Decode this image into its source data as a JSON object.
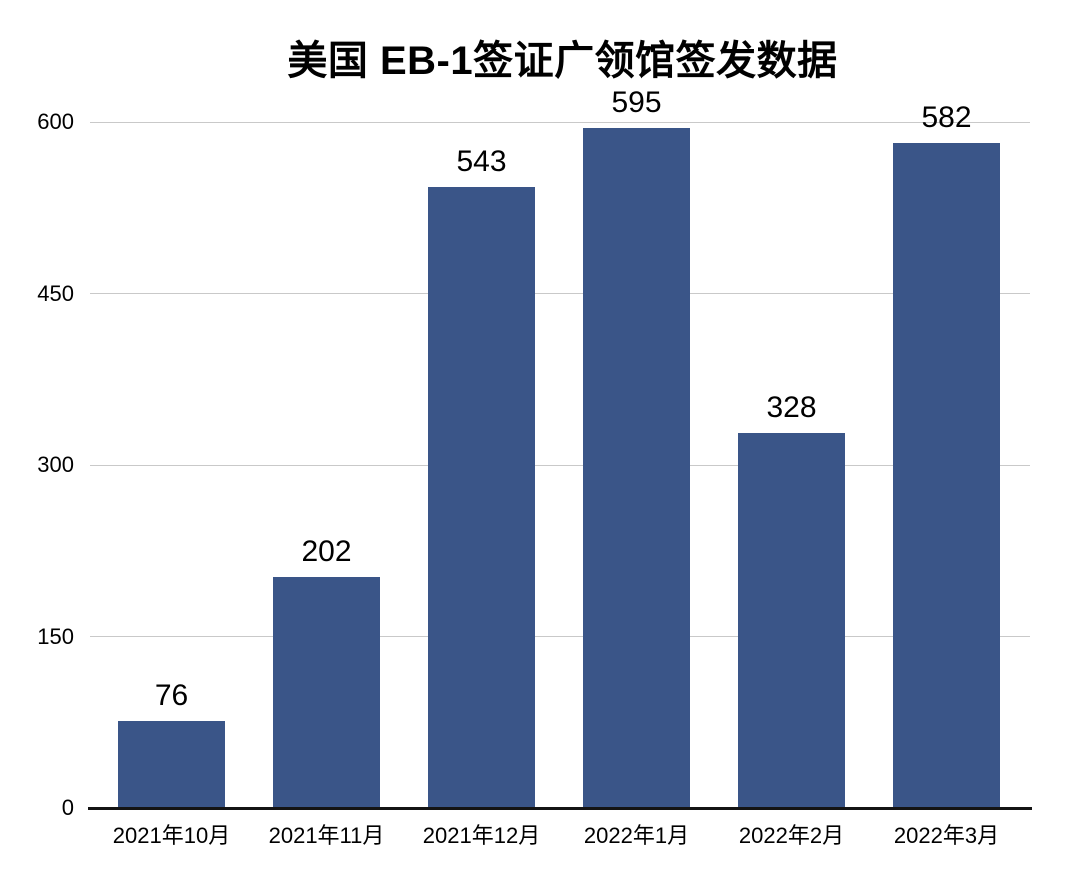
{
  "chart_data": {
    "type": "bar",
    "title": "美国 EB-1签证广领馆签发数据",
    "categories": [
      "2021年10月",
      "2021年11月",
      "2021年12月",
      "2022年1月",
      "2022年2月",
      "2022年3月"
    ],
    "values": [
      76,
      202,
      543,
      595,
      328,
      582
    ],
    "value_labels": [
      "76",
      "202",
      "543",
      "595",
      "328",
      "582"
    ],
    "xlabel": "",
    "ylabel": "",
    "ylim": [
      0,
      600
    ],
    "yticks": [
      0,
      150,
      300,
      450,
      600
    ],
    "grid": true,
    "legend_position": "none",
    "colors": {
      "bar": "#3A5588",
      "gridline": "#C9C9C9",
      "axis_line": "#141414",
      "text": "#000000",
      "background": "#FFFFFF"
    }
  }
}
